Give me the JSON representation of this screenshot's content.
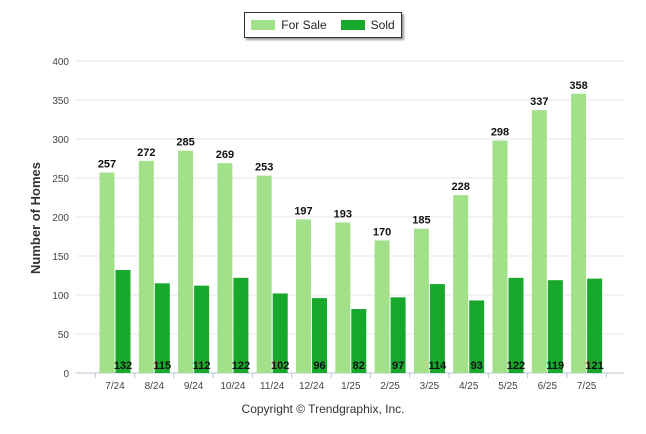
{
  "legend": {
    "series1": "For Sale",
    "series2": "Sold"
  },
  "colors": {
    "for_sale": "#a2e08a",
    "sold": "#18a82c"
  },
  "footer": {
    "copyright": "Copyright © Trendgraphix, Inc."
  },
  "chart_data": {
    "type": "bar",
    "ylabel": "Number of Homes",
    "xlabel": "",
    "title": "",
    "ylim": [
      0,
      400
    ],
    "yticks": [
      0,
      50,
      100,
      150,
      200,
      250,
      300,
      350,
      400
    ],
    "grid": true,
    "legend_position": "top-center",
    "categories": [
      "7/24",
      "8/24",
      "9/24",
      "10/24",
      "11/24",
      "12/24",
      "1/25",
      "2/25",
      "3/25",
      "4/25",
      "5/25",
      "6/25",
      "7/25"
    ],
    "series": [
      {
        "name": "For Sale",
        "values": [
          257,
          272,
          285,
          269,
          253,
          197,
          193,
          170,
          185,
          228,
          298,
          337,
          358
        ]
      },
      {
        "name": "Sold",
        "values": [
          132,
          115,
          112,
          122,
          102,
          96,
          82,
          97,
          114,
          93,
          122,
          119,
          121
        ]
      }
    ]
  }
}
